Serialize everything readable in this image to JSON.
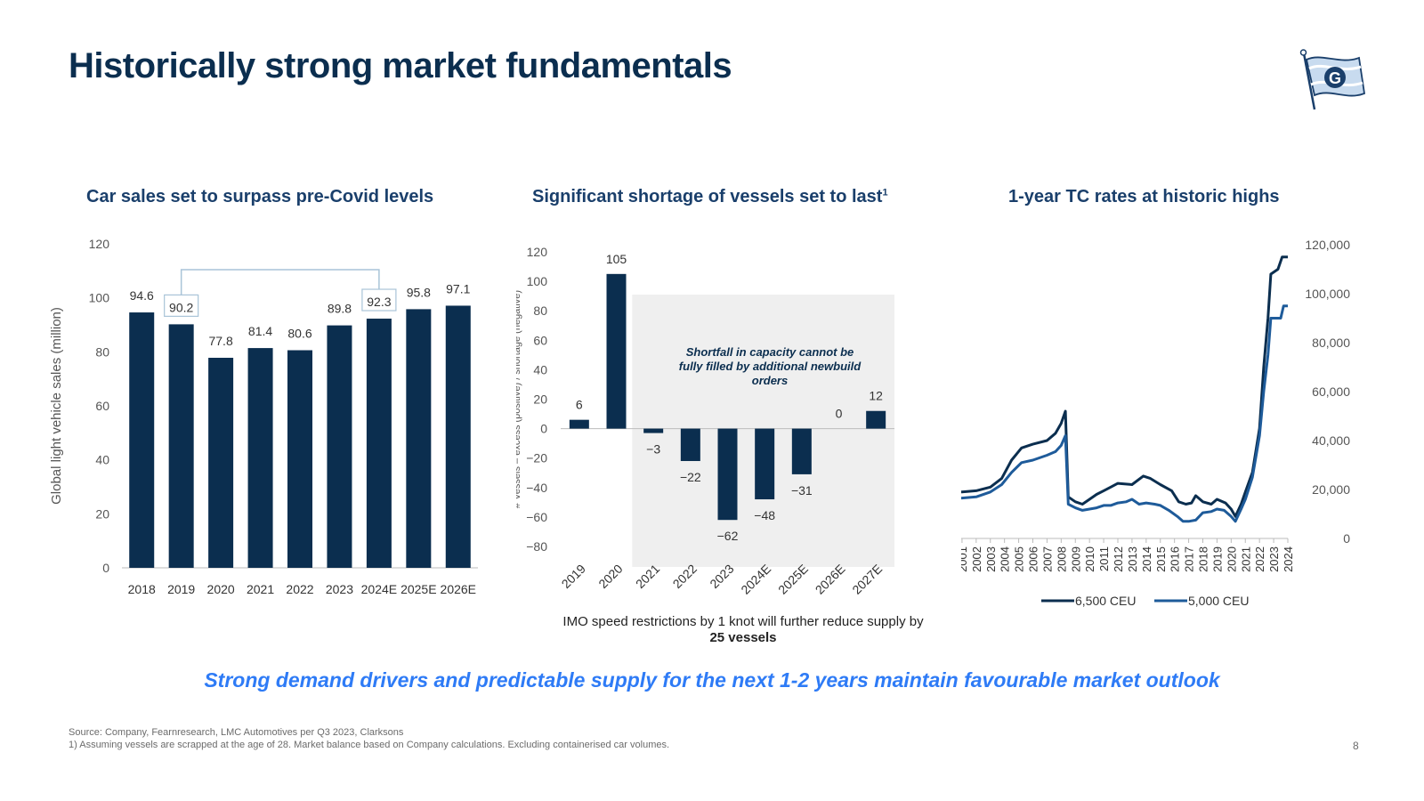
{
  "title": "Historically strong market fundamentals",
  "colors": {
    "navy": "#0b2e4f",
    "blue_line": "#1e5b9a",
    "accent": "#2e7bf6",
    "shade": "#efefef",
    "bracket": "#a9c4d8"
  },
  "panels": {
    "left": {
      "title": "Car sales set to surpass pre-Covid levels"
    },
    "mid": {
      "title": "Significant shortage of vessels set to last",
      "title_sup": "1"
    },
    "right": {
      "title": "1-year TC rates at historic highs"
    }
  },
  "mid_note": {
    "text": "IMO speed restrictions  by 1 knot will further reduce supply by ",
    "bold": "25 vessels"
  },
  "tagline": "Strong demand drivers and predictable supply for the next 1-2 years maintain favourable market outlook",
  "footnotes": {
    "source": "Source: Company, Fearnresearch, LMC Automotives per Q3 2023, Clarksons",
    "note1": "1) Assuming vessels are scrapped at the age of 28. Market balance based on Company calculations. Excluding containerised car volumes."
  },
  "page_number": "8",
  "logo_letter": "G",
  "chart_data": [
    {
      "type": "bar",
      "title": "Car sales set to surpass pre-Covid levels",
      "ylabel": "Global light vehicle sales (million)",
      "categories": [
        "2018",
        "2019",
        "2020",
        "2021",
        "2022",
        "2023",
        "2024E",
        "2025E",
        "2026E"
      ],
      "values": [
        94.6,
        90.2,
        77.8,
        81.4,
        80.6,
        89.8,
        92.3,
        95.8,
        97.1
      ],
      "labels": [
        "94.6",
        "90.2",
        "77.8",
        "81.4",
        "80.6",
        "89.8",
        "92.3",
        "95.8",
        "97.1"
      ],
      "highlighted": [
        "2019",
        "2024E"
      ],
      "yticks": [
        "0",
        "20",
        "40",
        "60",
        "80",
        "100",
        "120"
      ],
      "ylim": [
        0,
        120
      ]
    },
    {
      "type": "bar",
      "title": "Significant shortage of vessels set to last",
      "ylabel": "# Vessels – excess (positive) / shortage (negative)",
      "categories": [
        "2019",
        "2020",
        "2021",
        "2022",
        "2023",
        "2024E",
        "2025E",
        "2026E",
        "2027E"
      ],
      "values": [
        6,
        105,
        -3,
        -22,
        -62,
        -48,
        -31,
        0,
        12
      ],
      "labels": [
        "6",
        "105",
        "-3",
        "-22",
        "-62",
        "-48",
        "-31",
        "0",
        "12"
      ],
      "yticks": [
        "120",
        "100",
        "80",
        "60",
        "40",
        "20",
        "0",
        "-20",
        "-40",
        "-60",
        "-80"
      ],
      "ylim": [
        -80,
        120
      ],
      "shaded_from": "2021",
      "annotation": "Shortfall in capacity cannot be fully filled by additional newbuild orders"
    },
    {
      "type": "line",
      "title": "1-year TC rates at historic highs",
      "x_ticks": [
        "2000",
        "2001",
        "2002",
        "2003",
        "2004",
        "2005",
        "2006",
        "2007",
        "2008",
        "2009",
        "2010",
        "2011",
        "2012",
        "2013",
        "2014",
        "2015",
        "2016",
        "2017",
        "2018",
        "2019",
        "2020",
        "2021",
        "2022",
        "2023",
        "2024"
      ],
      "yticks": [
        "0",
        "20,000",
        "40,000",
        "60,000",
        "80,000",
        "100,000",
        "120,000"
      ],
      "ylim": [
        0,
        120000
      ],
      "legend_position": "bottom",
      "series": [
        {
          "name": "6,500 CEU",
          "color": "#0b2e4f",
          "points": [
            [
              2000,
              19500
            ],
            [
              2001,
              19000
            ],
            [
              2002,
              19500
            ],
            [
              2003,
              21000
            ],
            [
              2003.8,
              24500
            ],
            [
              2004.5,
              32000
            ],
            [
              2005.2,
              37000
            ],
            [
              2006,
              38500
            ],
            [
              2007,
              40000
            ],
            [
              2007.6,
              43000
            ],
            [
              2008,
              47000
            ],
            [
              2008.3,
              52000
            ],
            [
              2008.5,
              17000
            ],
            [
              2009,
              15000
            ],
            [
              2009.5,
              14000
            ],
            [
              2010,
              16000
            ],
            [
              2010.5,
              18000
            ],
            [
              2011,
              19500
            ],
            [
              2011.5,
              21000
            ],
            [
              2012,
              22500
            ],
            [
              2013,
              22000
            ],
            [
              2013.8,
              25500
            ],
            [
              2014.3,
              24500
            ],
            [
              2015,
              22000
            ],
            [
              2015.8,
              19500
            ],
            [
              2016.3,
              15000
            ],
            [
              2016.8,
              14000
            ],
            [
              2017.2,
              14500
            ],
            [
              2017.5,
              17500
            ],
            [
              2018,
              15000
            ],
            [
              2018.6,
              14000
            ],
            [
              2019,
              16000
            ],
            [
              2019.6,
              14500
            ],
            [
              2020,
              12000
            ],
            [
              2020.3,
              9000
            ],
            [
              2020.7,
              14000
            ],
            [
              2021,
              19000
            ],
            [
              2021.5,
              27000
            ],
            [
              2022,
              45000
            ],
            [
              2022.3,
              70000
            ],
            [
              2022.6,
              90000
            ],
            [
              2022.8,
              108000
            ],
            [
              2023.3,
              110000
            ],
            [
              2023.6,
              115000
            ],
            [
              2024,
              115000
            ]
          ]
        },
        {
          "name": "5,000 CEU",
          "color": "#1e5b9a",
          "points": [
            [
              2000,
              16000
            ],
            [
              2001,
              16500
            ],
            [
              2002,
              17000
            ],
            [
              2003,
              19000
            ],
            [
              2003.8,
              22000
            ],
            [
              2004.5,
              27000
            ],
            [
              2005.2,
              31000
            ],
            [
              2006,
              32000
            ],
            [
              2007,
              34000
            ],
            [
              2007.6,
              35500
            ],
            [
              2008,
              38000
            ],
            [
              2008.3,
              42000
            ],
            [
              2008.5,
              14000
            ],
            [
              2009,
              12500
            ],
            [
              2009.5,
              11500
            ],
            [
              2010,
              12000
            ],
            [
              2010.5,
              12500
            ],
            [
              2011,
              13500
            ],
            [
              2011.5,
              13500
            ],
            [
              2012,
              14500
            ],
            [
              2012.6,
              15000
            ],
            [
              2013,
              16000
            ],
            [
              2013.5,
              14000
            ],
            [
              2014,
              14500
            ],
            [
              2014.6,
              14000
            ],
            [
              2015,
              13500
            ],
            [
              2015.6,
              11500
            ],
            [
              2016.2,
              9000
            ],
            [
              2016.6,
              7000
            ],
            [
              2017,
              7000
            ],
            [
              2017.5,
              7500
            ],
            [
              2018,
              10500
            ],
            [
              2018.6,
              11000
            ],
            [
              2019,
              12000
            ],
            [
              2019.5,
              11500
            ],
            [
              2020,
              9000
            ],
            [
              2020.3,
              7000
            ],
            [
              2020.7,
              12000
            ],
            [
              2021,
              16000
            ],
            [
              2021.5,
              25000
            ],
            [
              2022,
              42000
            ],
            [
              2022.3,
              60000
            ],
            [
              2022.6,
              75000
            ],
            [
              2022.8,
              90000
            ],
            [
              2023.5,
              90000
            ],
            [
              2023.7,
              95000
            ],
            [
              2024,
              95000
            ]
          ]
        }
      ]
    }
  ]
}
